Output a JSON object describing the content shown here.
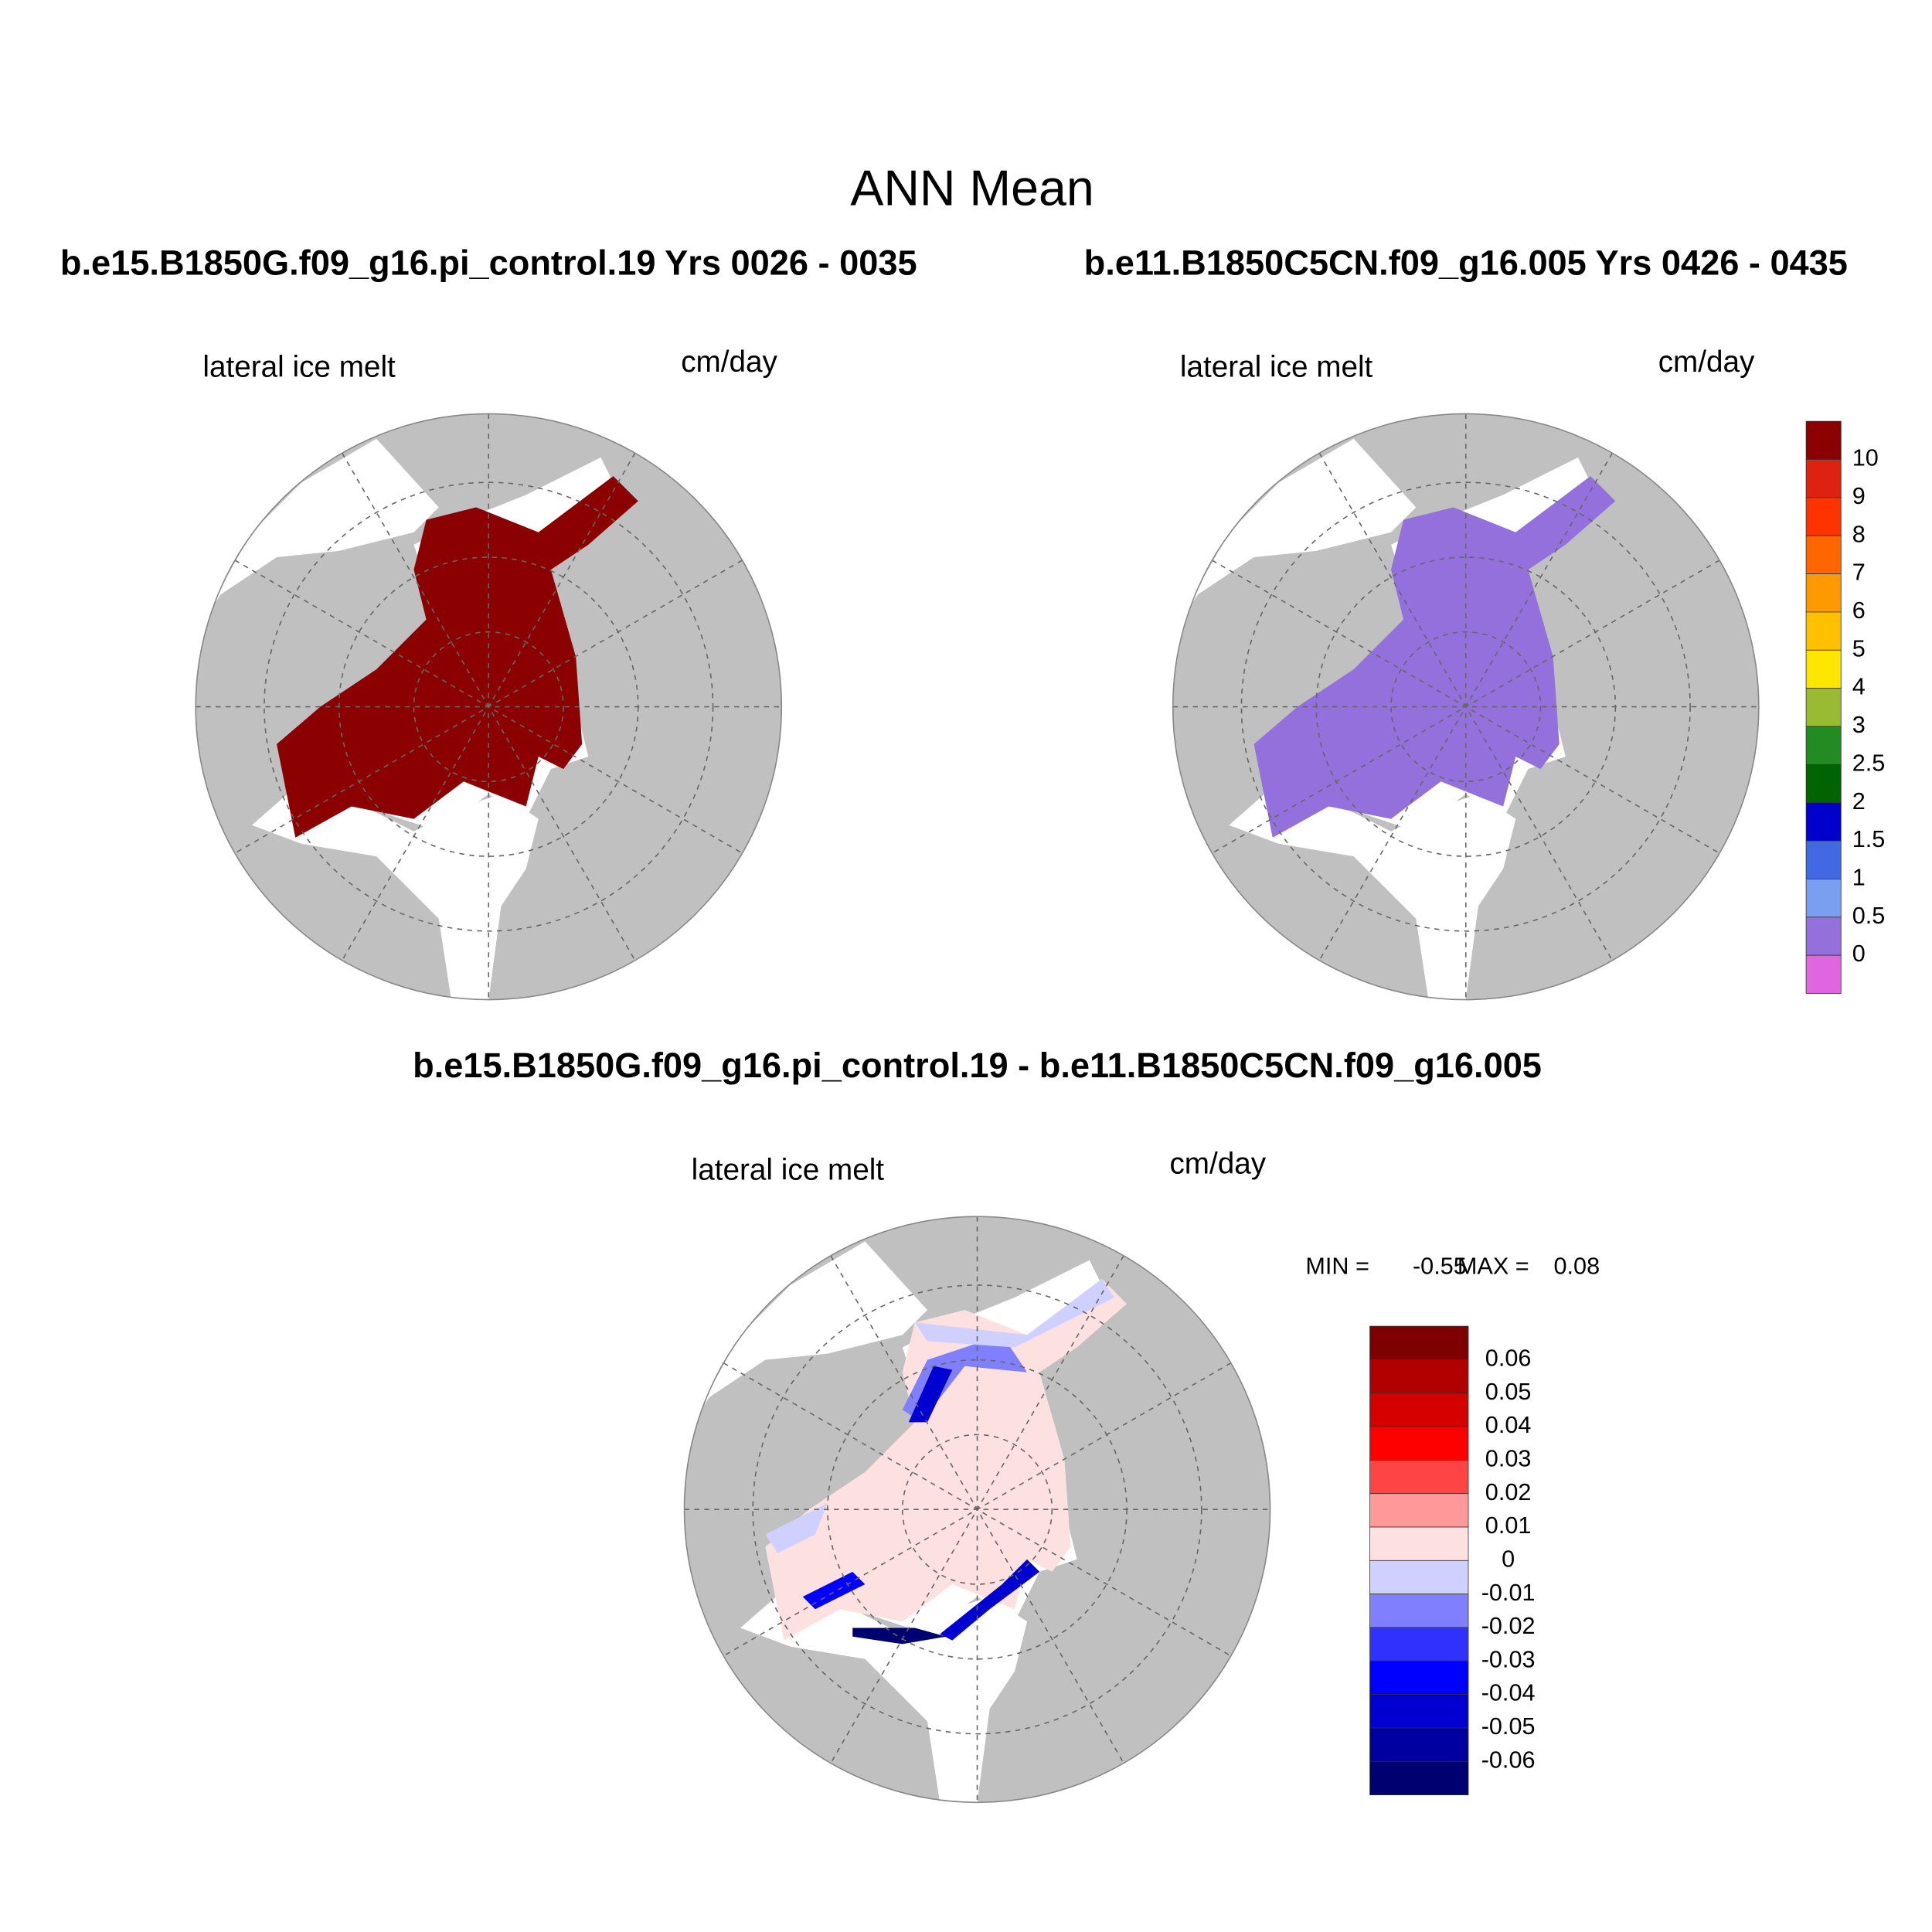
{
  "header": {
    "title": "ANN Mean"
  },
  "panels": [
    {
      "title": "b.e15.B1850G.f09_g16.pi_control.19  Yrs 0026 - 0035",
      "variable": "lateral ice melt",
      "units": "cm/day",
      "fill": "#8b0000"
    },
    {
      "title": "b.e11.B1850C5CN.f09_g16.005  Yrs 0426 - 0435",
      "variable": "lateral ice melt",
      "units": "cm/day",
      "fill": "#9370db"
    },
    {
      "title": "b.e15.B1850G.f09_g16.pi_control.19 - b.e11.B1850C5CN.f09_g16.005",
      "variable": "lateral ice melt",
      "units": "cm/day",
      "min_label": "MIN =",
      "min": -0.55,
      "max_label": "MAX =",
      "max": 0.08
    }
  ],
  "colorbars": [
    {
      "labels": [
        10,
        9,
        8,
        7,
        6,
        5,
        4,
        3,
        2.5,
        2,
        1.5,
        1,
        0.5,
        0
      ],
      "colors": [
        "#8b0000",
        "#dd2211",
        "#ff3300",
        "#ff6600",
        "#ff9900",
        "#ffc000",
        "#ffe600",
        "#99bb33",
        "#228b22",
        "#006400",
        "#0000cd",
        "#4169e1",
        "#7b9ff0",
        "#9370db",
        "#e066e0"
      ]
    },
    {
      "labels": [
        0.06,
        0.05,
        0.04,
        0.03,
        0.02,
        0.01,
        0,
        -0.01,
        -0.02,
        -0.03,
        -0.04,
        -0.05,
        -0.06
      ],
      "colors": [
        "#7f0000",
        "#b00000",
        "#d40000",
        "#ff0000",
        "#ff4444",
        "#ff9999",
        "#fde0e0",
        "#d0d0ff",
        "#8080ff",
        "#3030ff",
        "#0000ff",
        "#0000d0",
        "#0000a0",
        "#000070"
      ]
    }
  ]
}
